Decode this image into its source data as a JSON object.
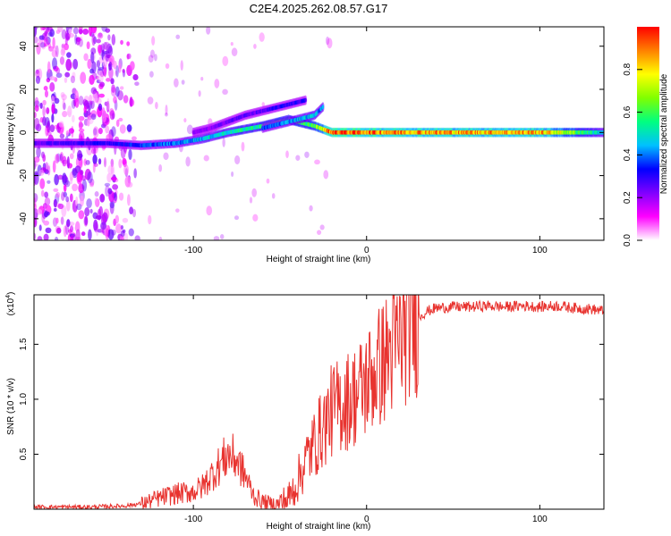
{
  "title": "C2E4.2025.262.08.57.G17",
  "colors": {
    "snr_line": "#e8332f",
    "axis": "#000000"
  },
  "chart_data": [
    {
      "type": "heatmap",
      "name": "spectrogram",
      "xlabel": "Height of straight line (km)",
      "ylabel": "Frequency (Hz)",
      "xlim": [
        -192,
        137
      ],
      "ylim": [
        -50,
        49
      ],
      "xticks": [
        -100,
        0,
        100
      ],
      "yticks": [
        -40,
        -20,
        0,
        20,
        40
      ],
      "colorbar": {
        "label": "Normalized spectral amplitude",
        "range": [
          0,
          1
        ],
        "ticks": [
          0.0,
          0.2,
          0.4,
          0.6,
          0.8
        ],
        "tick_labels": [
          "0.0",
          "0.2",
          "0.4",
          "0.6",
          "0.8"
        ],
        "colormap": [
          "#ffffff",
          "#ff00ff",
          "#8000ff",
          "#0000ff",
          "#00c0ff",
          "#00ff80",
          "#80ff00",
          "#ffff00",
          "#ff8000",
          "#ff0000"
        ]
      },
      "features": [
        {
          "label": "central carrier band",
          "x": [
            -192,
            -150,
            -130,
            -110,
            -95,
            -80,
            -60,
            -45,
            -30,
            -20,
            0,
            50,
            100,
            137
          ],
          "freq": [
            -5,
            -5,
            -6,
            -5,
            -3,
            0,
            3,
            6,
            3,
            0,
            0,
            0,
            0,
            0
          ],
          "amplitude": [
            0.25,
            0.3,
            0.35,
            0.4,
            0.45,
            0.5,
            0.55,
            0.55,
            0.6,
            0.95,
            0.9,
            0.85,
            0.85,
            0.45
          ]
        },
        {
          "label": "upper branch",
          "x": [
            -100,
            -90,
            -80,
            -70,
            -60,
            -50,
            -40,
            -35
          ],
          "freq": [
            0,
            2,
            5,
            8,
            10,
            12,
            14,
            15
          ],
          "amplitude": [
            0.2,
            0.2,
            0.25,
            0.25,
            0.25,
            0.3,
            0.3,
            0.3
          ]
        },
        {
          "label": "second branch",
          "x": [
            -60,
            -50,
            -40,
            -30,
            -25
          ],
          "freq": [
            2,
            4,
            6,
            8,
            12
          ],
          "amplitude": [
            0.35,
            0.4,
            0.45,
            0.45,
            0.4
          ]
        }
      ],
      "noise_region": {
        "x": [
          -192,
          -130
        ],
        "freq": [
          -50,
          49
        ],
        "amplitude": 0.15
      }
    },
    {
      "type": "line",
      "name": "snr",
      "xlabel": "Height of straight line (km)",
      "ylabel": "SNR (10 * v/v)",
      "multiplier": "(x10",
      "multiplier_exp": "4",
      "multiplier_close": ")",
      "xlim": [
        -192,
        137
      ],
      "ylim": [
        0,
        1.95
      ],
      "xticks": [
        -100,
        0,
        100
      ],
      "yticks": [
        0.5,
        1.0,
        1.5
      ],
      "ytick_labels": [
        "0.5",
        "1.0",
        "1.5"
      ],
      "series": [
        {
          "name": "SNR",
          "x": [
            -192,
            -180,
            -160,
            -140,
            -130,
            -120,
            -110,
            -100,
            -95,
            -90,
            -85,
            -80,
            -75,
            -70,
            -65,
            -60,
            -55,
            -50,
            -45,
            -40,
            -35,
            -30,
            -25,
            -20,
            -15,
            -10,
            -5,
            0,
            5,
            10,
            15,
            20,
            25,
            30,
            35,
            40,
            50,
            60,
            70,
            80,
            90,
            100,
            110,
            120,
            130,
            137
          ],
          "y": [
            0.02,
            0.02,
            0.02,
            0.03,
            0.05,
            0.1,
            0.14,
            0.16,
            0.2,
            0.3,
            0.4,
            0.5,
            0.45,
            0.3,
            0.12,
            0.07,
            0.05,
            0.05,
            0.1,
            0.25,
            0.45,
            0.6,
            0.75,
            0.9,
            0.95,
            1.0,
            1.05,
            1.15,
            1.25,
            1.35,
            1.45,
            1.55,
            1.68,
            1.75,
            1.8,
            1.83,
            1.84,
            1.84,
            1.85,
            1.84,
            1.85,
            1.84,
            1.85,
            1.83,
            1.82,
            1.8
          ]
        }
      ]
    }
  ]
}
